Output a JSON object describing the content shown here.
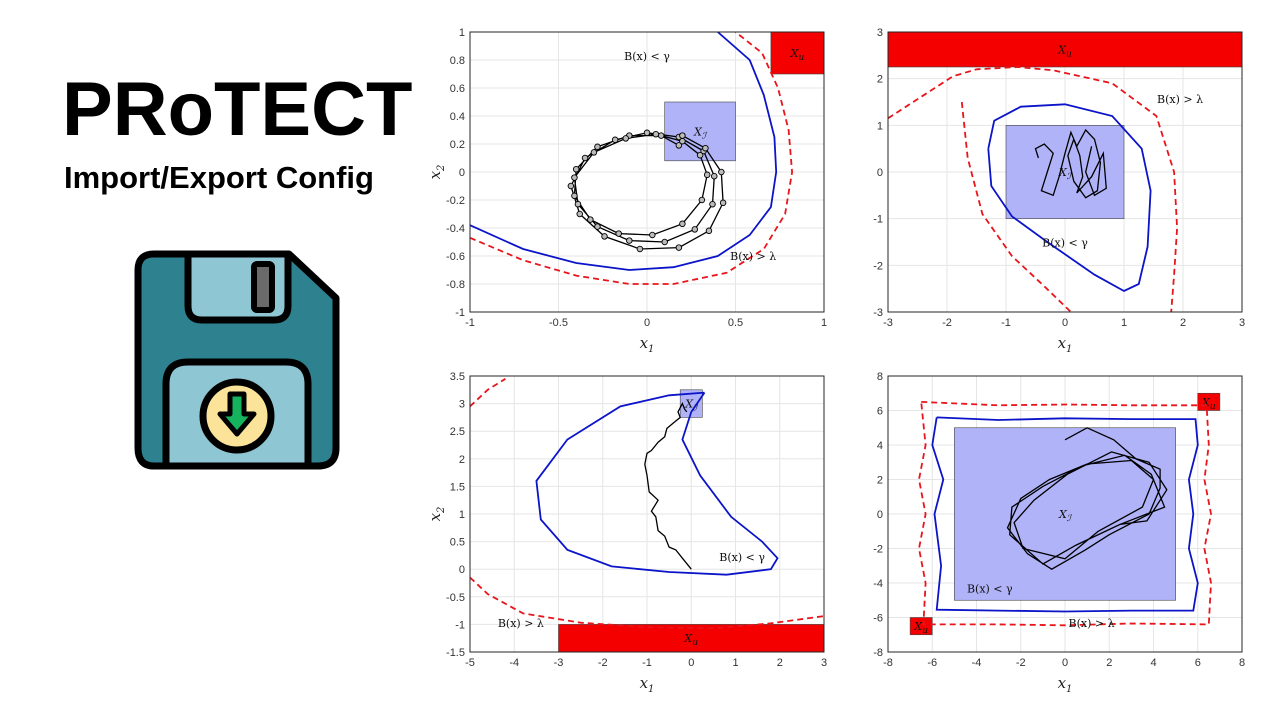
{
  "header": {
    "title": "PRoTECT",
    "subtitle": "Import/Export Config"
  },
  "icon": {
    "name": "floppy-disk-download-icon"
  },
  "colors": {
    "disk_body": "#2e8290",
    "disk_light": "#8fc6d3",
    "badge_fill": "#fbe39a",
    "arrow_fill": "#16b35f",
    "barrier_solid": "#0b14c8",
    "barrier_dashed": "#e8151b",
    "initial_set": "#b0b3f8",
    "unsafe_set": "#f40000",
    "trajectory": "#000000"
  },
  "chart_data": [
    {
      "type": "line",
      "xlim": [
        -1,
        1
      ],
      "ylim": [
        -1,
        1
      ],
      "xticks": [
        "-1",
        "-0.5",
        "0",
        "0.5",
        "1"
      ],
      "yticks": [
        "-1",
        "-0.8",
        "-0.6",
        "-0.4",
        "-0.2",
        "0",
        "0.2",
        "0.4",
        "0.6",
        "0.8",
        "1"
      ],
      "xlabel": "x1",
      "ylabel": "x2",
      "grid": true,
      "initial_set": {
        "x": [
          0.1,
          0.5
        ],
        "y": [
          0.08,
          0.5
        ],
        "label": "X_I"
      },
      "unsafe_set": {
        "x": [
          0.7,
          1.0
        ],
        "y": [
          0.7,
          1.0
        ],
        "label": "X_U"
      },
      "annotations": [
        {
          "text": "B(x) < γ",
          "x": 0.0,
          "y": 0.8
        },
        {
          "text": "B(x) > λ",
          "x": 0.6,
          "y": -0.63
        }
      ],
      "barrier_solid": [
        [
          -1,
          -0.38
        ],
        [
          -0.7,
          -0.55
        ],
        [
          -0.4,
          -0.65
        ],
        [
          -0.1,
          -0.7
        ],
        [
          0.15,
          -0.68
        ],
        [
          0.4,
          -0.6
        ],
        [
          0.58,
          -0.45
        ],
        [
          0.7,
          -0.25
        ],
        [
          0.73,
          0.0
        ],
        [
          0.72,
          0.25
        ],
        [
          0.66,
          0.55
        ],
        [
          0.58,
          0.8
        ],
        [
          0.4,
          1.0
        ]
      ],
      "barrier_dashed": [
        [
          -1,
          -0.47
        ],
        [
          -0.7,
          -0.63
        ],
        [
          -0.4,
          -0.74
        ],
        [
          -0.1,
          -0.8
        ],
        [
          0.15,
          -0.8
        ],
        [
          0.45,
          -0.72
        ],
        [
          0.66,
          -0.55
        ],
        [
          0.78,
          -0.3
        ],
        [
          0.82,
          0.0
        ],
        [
          0.8,
          0.3
        ],
        [
          0.74,
          0.6
        ],
        [
          0.65,
          0.85
        ],
        [
          0.5,
          1.0
        ]
      ],
      "trajectory_markers": true,
      "trajectory": [
        [
          0.18,
          0.19
        ],
        [
          0.08,
          0.26
        ],
        [
          -0.1,
          0.26
        ],
        [
          -0.28,
          0.18
        ],
        [
          -0.4,
          0.02
        ],
        [
          -0.41,
          -0.17
        ],
        [
          -0.32,
          -0.34
        ],
        [
          -0.16,
          -0.44
        ],
        [
          0.03,
          -0.45
        ],
        [
          0.2,
          -0.37
        ],
        [
          0.31,
          -0.2
        ],
        [
          0.34,
          -0.02
        ],
        [
          0.3,
          0.12
        ],
        [
          0.2,
          0.22
        ],
        [
          0.05,
          0.27
        ],
        [
          -0.12,
          0.24
        ],
        [
          -0.3,
          0.14
        ],
        [
          -0.41,
          -0.04
        ],
        [
          -0.39,
          -0.23
        ],
        [
          -0.28,
          -0.39
        ],
        [
          -0.1,
          -0.49
        ],
        [
          0.1,
          -0.5
        ],
        [
          0.27,
          -0.41
        ],
        [
          0.37,
          -0.23
        ],
        [
          0.38,
          -0.03
        ],
        [
          0.32,
          0.15
        ],
        [
          0.18,
          0.25
        ],
        [
          0.0,
          0.28
        ],
        [
          -0.18,
          0.23
        ],
        [
          -0.35,
          0.1
        ],
        [
          -0.43,
          -0.1
        ],
        [
          -0.38,
          -0.3
        ],
        [
          -0.24,
          -0.46
        ],
        [
          -0.04,
          -0.55
        ],
        [
          0.18,
          -0.54
        ],
        [
          0.35,
          -0.42
        ],
        [
          0.43,
          -0.22
        ],
        [
          0.42,
          0.0
        ],
        [
          0.33,
          0.17
        ],
        [
          0.2,
          0.26
        ]
      ]
    },
    {
      "type": "line",
      "xlim": [
        -3,
        3
      ],
      "ylim": [
        -3,
        3
      ],
      "xticks": [
        "-3",
        "-2",
        "-1",
        "0",
        "1",
        "2",
        "3"
      ],
      "yticks": [
        "-3",
        "-2",
        "-1",
        "0",
        "1",
        "2",
        "3"
      ],
      "xlabel": "x1",
      "ylabel": "",
      "grid": true,
      "initial_set": {
        "x": [
          -1,
          1
        ],
        "y": [
          -1,
          1
        ],
        "label": "X_I"
      },
      "unsafe_set": {
        "x": [
          -3,
          3
        ],
        "y": [
          2.25,
          3
        ],
        "label": "X_U"
      },
      "annotations": [
        {
          "text": "B(x) > λ",
          "x": 1.95,
          "y": 1.48
        },
        {
          "text": "B(x) < γ",
          "x": 0.0,
          "y": -1.6
        }
      ],
      "barrier_solid": [
        [
          -1.3,
          0.5
        ],
        [
          -1.2,
          1.1
        ],
        [
          -0.75,
          1.4
        ],
        [
          0.0,
          1.45
        ],
        [
          0.8,
          1.2
        ],
        [
          1.3,
          0.5
        ],
        [
          1.45,
          -0.4
        ],
        [
          1.4,
          -1.6
        ],
        [
          1.25,
          -2.4
        ],
        [
          1.0,
          -2.55
        ],
        [
          0.5,
          -2.2
        ],
        [
          -0.3,
          -1.5
        ],
        [
          -0.9,
          -0.95
        ],
        [
          -1.25,
          -0.3
        ],
        [
          -1.3,
          0.5
        ]
      ],
      "barrier_dashed": [
        [
          -3,
          1.15
        ],
        [
          -1.9,
          2.05
        ],
        [
          -1.5,
          2.2
        ],
        [
          -0.8,
          2.25
        ],
        [
          -0.2,
          2.18
        ],
        [
          0.8,
          1.9
        ],
        [
          1.55,
          1.2
        ],
        [
          1.85,
          0.0
        ],
        [
          1.9,
          -1.2
        ],
        [
          1.85,
          -2.2
        ],
        [
          1.8,
          -3.0
        ]
      ],
      "barrier_dashed_2": [
        [
          -1.75,
          1.5
        ],
        [
          -1.65,
          0.3
        ],
        [
          -1.4,
          -0.9
        ],
        [
          -0.9,
          -1.8
        ],
        [
          -0.35,
          -2.45
        ],
        [
          0.1,
          -3.0
        ]
      ],
      "trajectory_markers": false,
      "trajectory": [
        [
          -0.45,
          0.3
        ],
        [
          -0.5,
          0.5
        ],
        [
          -0.35,
          0.6
        ],
        [
          -0.2,
          0.4
        ],
        [
          -0.3,
          0.0
        ],
        [
          -0.4,
          -0.4
        ],
        [
          -0.2,
          -0.5
        ],
        [
          -0.1,
          -0.1
        ],
        [
          0.0,
          0.4
        ],
        [
          0.1,
          0.85
        ],
        [
          0.2,
          0.55
        ],
        [
          0.35,
          0.9
        ],
        [
          0.5,
          0.7
        ],
        [
          0.6,
          0.2
        ],
        [
          0.55,
          -0.4
        ],
        [
          0.35,
          -0.55
        ],
        [
          0.15,
          -0.2
        ],
        [
          0.05,
          0.35
        ],
        [
          0.15,
          0.7
        ],
        [
          0.25,
          0.35
        ],
        [
          0.3,
          -0.1
        ],
        [
          0.2,
          -0.45
        ],
        [
          0.45,
          -0.1
        ],
        [
          0.65,
          0.4
        ],
        [
          0.7,
          -0.35
        ],
        [
          0.5,
          -0.5
        ],
        [
          0.35,
          0.0
        ],
        [
          0.45,
          0.55
        ]
      ]
    },
    {
      "type": "line",
      "xlim": [
        -5,
        3
      ],
      "ylim": [
        -1.5,
        3.5
      ],
      "xticks": [
        "-5",
        "-4",
        "-3",
        "-2",
        "-1",
        "0",
        "1",
        "2",
        "3"
      ],
      "yticks": [
        "-1.5",
        "-1",
        "-0.5",
        "0",
        "0.5",
        "1",
        "1.5",
        "2",
        "2.5",
        "3",
        "3.5"
      ],
      "xlabel": "x1",
      "ylabel": "x2",
      "grid": true,
      "initial_set": {
        "x": [
          -0.25,
          0.25
        ],
        "y": [
          2.75,
          3.25
        ],
        "label": "X_I"
      },
      "unsafe_set": {
        "x": [
          -3,
          3
        ],
        "y": [
          -1.5,
          -1
        ],
        "label": "X_U"
      },
      "annotations": [
        {
          "text": "B(x) < γ",
          "x": 1.15,
          "y": 0.15
        },
        {
          "text": "B(x) > λ",
          "x": -3.85,
          "y": -1.05
        }
      ],
      "barrier_solid": [
        [
          0.3,
          3.2
        ],
        [
          -0.5,
          3.15
        ],
        [
          -1.6,
          2.95
        ],
        [
          -2.8,
          2.35
        ],
        [
          -3.5,
          1.6
        ],
        [
          -3.4,
          0.9
        ],
        [
          -2.8,
          0.35
        ],
        [
          -1.8,
          0.05
        ],
        [
          -0.5,
          -0.05
        ],
        [
          0.8,
          -0.1
        ],
        [
          1.8,
          0.0
        ],
        [
          1.95,
          0.2
        ],
        [
          1.6,
          0.5
        ],
        [
          0.9,
          0.95
        ],
        [
          0.2,
          1.7
        ],
        [
          -0.2,
          2.35
        ],
        [
          0.0,
          2.85
        ],
        [
          0.3,
          3.2
        ]
      ],
      "barrier_dashed": [
        [
          -5,
          -0.15
        ],
        [
          -4.6,
          -0.45
        ],
        [
          -3.8,
          -0.8
        ],
        [
          -2.5,
          -0.97
        ],
        [
          -1.0,
          -1.05
        ],
        [
          0.5,
          -1.07
        ],
        [
          1.8,
          -0.98
        ],
        [
          3.0,
          -0.85
        ]
      ],
      "barrier_dashed_2": [
        [
          -5,
          2.95
        ],
        [
          -4.6,
          3.25
        ],
        [
          -4.2,
          3.45
        ]
      ],
      "trajectory_markers": false,
      "trajectory": [
        [
          0.0,
          0.0
        ],
        [
          -0.2,
          0.2
        ],
        [
          -0.35,
          0.35
        ],
        [
          -0.5,
          0.4
        ],
        [
          -0.6,
          0.6
        ],
        [
          -0.75,
          0.7
        ],
        [
          -0.8,
          0.95
        ],
        [
          -0.9,
          1.05
        ],
        [
          -0.75,
          1.25
        ],
        [
          -0.95,
          1.4
        ],
        [
          -1.0,
          1.7
        ],
        [
          -1.05,
          1.9
        ],
        [
          -1.0,
          2.1
        ],
        [
          -0.9,
          2.15
        ],
        [
          -0.75,
          2.3
        ],
        [
          -0.6,
          2.4
        ],
        [
          -0.55,
          2.55
        ],
        [
          -0.4,
          2.65
        ],
        [
          -0.25,
          2.75
        ],
        [
          -0.3,
          2.85
        ],
        [
          -0.2,
          3.0
        ],
        [
          -0.15,
          2.9
        ],
        [
          -0.1,
          2.85
        ]
      ]
    },
    {
      "type": "line",
      "xlim": [
        -8,
        8
      ],
      "ylim": [
        -8,
        8
      ],
      "xticks": [
        "-8",
        "-6",
        "-4",
        "-2",
        "0",
        "2",
        "4",
        "6",
        "8"
      ],
      "yticks": [
        "-8",
        "-6",
        "-4",
        "-2",
        "0",
        "2",
        "4",
        "6",
        "8"
      ],
      "xlabel": "x1",
      "ylabel": "",
      "grid": true,
      "initial_set": {
        "x": [
          -5,
          5
        ],
        "y": [
          -5,
          5
        ],
        "label": "X_I"
      },
      "unsafe_set_1": {
        "x": [
          6,
          7
        ],
        "y": [
          6,
          7
        ],
        "label": "X_U"
      },
      "unsafe_set_2": {
        "x": [
          -7,
          -6
        ],
        "y": [
          -7,
          -6
        ],
        "label": "X_U"
      },
      "annotations": [
        {
          "text": "B(x) < γ",
          "x": -3.4,
          "y": -4.55
        },
        {
          "text": "B(x) > λ",
          "x": 1.2,
          "y": -6.55
        }
      ],
      "barrier_solid": [
        [
          -5.8,
          5.6
        ],
        [
          -3,
          5.45
        ],
        [
          0,
          5.55
        ],
        [
          3,
          5.5
        ],
        [
          5.9,
          5.5
        ],
        [
          6.0,
          4.0
        ],
        [
          5.6,
          2.0
        ],
        [
          5.8,
          0
        ],
        [
          5.6,
          -2
        ],
        [
          6.0,
          -4
        ],
        [
          5.8,
          -5.6
        ],
        [
          3,
          -5.6
        ],
        [
          0,
          -5.65
        ],
        [
          -3,
          -5.6
        ],
        [
          -5.8,
          -5.55
        ],
        [
          -5.6,
          -3
        ],
        [
          -5.9,
          0
        ],
        [
          -5.5,
          2
        ],
        [
          -6.0,
          4
        ],
        [
          -5.8,
          5.6
        ]
      ],
      "barrier_dashed": [
        [
          -6.5,
          6.5
        ],
        [
          -3,
          6.3
        ],
        [
          0,
          6.35
        ],
        [
          3,
          6.3
        ],
        [
          6.4,
          6.3
        ],
        [
          6.5,
          4
        ],
        [
          6.3,
          2
        ],
        [
          6.6,
          0
        ],
        [
          6.3,
          -2
        ],
        [
          6.6,
          -4
        ],
        [
          6.5,
          -6.4
        ],
        [
          3,
          -6.35
        ],
        [
          0,
          -6.45
        ],
        [
          -3,
          -6.4
        ],
        [
          -6.4,
          -6.4
        ],
        [
          -6.3,
          -4
        ],
        [
          -6.6,
          -2
        ],
        [
          -6.3,
          0
        ],
        [
          -6.6,
          2
        ],
        [
          -6.3,
          4
        ],
        [
          -6.5,
          6.5
        ]
      ],
      "trajectory_markers": false,
      "trajectory": [
        [
          0,
          4.3
        ],
        [
          1,
          5.0
        ],
        [
          2.2,
          4.3
        ],
        [
          3.2,
          3.2
        ],
        [
          4.3,
          2.6
        ],
        [
          4.3,
          1.5
        ],
        [
          3.8,
          0
        ],
        [
          2.0,
          -1.2
        ],
        [
          0.9,
          -2.1
        ],
        [
          -0.6,
          -3.2
        ],
        [
          -1.7,
          -2.3
        ],
        [
          -2.6,
          -0.8
        ],
        [
          -2.0,
          0.9
        ],
        [
          -0.7,
          2.0
        ],
        [
          1.0,
          2.9
        ],
        [
          3.0,
          3.1
        ],
        [
          4.0,
          2.0
        ],
        [
          3.5,
          0.4
        ],
        [
          1.5,
          -1.0
        ],
        [
          0.0,
          -2.6
        ],
        [
          -1.9,
          -2.0
        ],
        [
          -2.3,
          -0.5
        ],
        [
          -1.4,
          0.8
        ],
        [
          0.1,
          2.3
        ],
        [
          2.1,
          3.6
        ],
        [
          3.8,
          3.0
        ],
        [
          4.6,
          1.4
        ],
        [
          3.7,
          -0.4
        ],
        [
          2.5,
          -0.6
        ],
        [
          0.5,
          -1.8
        ],
        [
          -1.0,
          -2.9
        ],
        [
          -2.5,
          -1.2
        ],
        [
          -2.4,
          0.4
        ],
        [
          -1.0,
          1.6
        ],
        [
          0.8,
          2.8
        ],
        [
          2.7,
          3.4
        ],
        [
          3.9,
          2.3
        ],
        [
          4.5,
          0.4
        ],
        [
          2.5,
          -0.6
        ]
      ]
    }
  ]
}
